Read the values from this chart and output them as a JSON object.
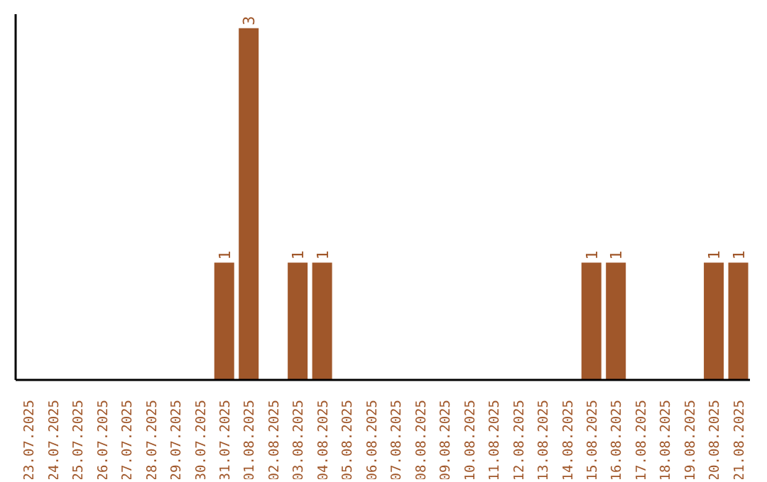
{
  "chart_data": {
    "type": "bar",
    "categories": [
      "23.07.2025",
      "24.07.2025",
      "25.07.2025",
      "26.07.2025",
      "27.07.2025",
      "28.07.2025",
      "29.07.2025",
      "30.07.2025",
      "31.07.2025",
      "01.08.2025",
      "02.08.2025",
      "03.08.2025",
      "04.08.2025",
      "05.08.2025",
      "06.08.2025",
      "07.08.2025",
      "08.08.2025",
      "09.08.2025",
      "10.08.2025",
      "11.08.2025",
      "12.08.2025",
      "13.08.2025",
      "14.08.2025",
      "15.08.2025",
      "16.08.2025",
      "17.08.2025",
      "18.08.2025",
      "19.08.2025",
      "20.08.2025",
      "21.08.2025"
    ],
    "values": [
      0,
      0,
      0,
      0,
      0,
      0,
      0,
      0,
      1,
      3,
      0,
      1,
      1,
      0,
      0,
      0,
      0,
      0,
      0,
      0,
      0,
      0,
      0,
      1,
      1,
      0,
      0,
      0,
      1,
      1
    ],
    "value_labels": [
      null,
      null,
      null,
      null,
      null,
      null,
      null,
      null,
      "1",
      "3",
      null,
      "1",
      "1",
      null,
      null,
      null,
      null,
      null,
      null,
      null,
      null,
      null,
      null,
      "1",
      "1",
      null,
      null,
      null,
      "1",
      "1"
    ],
    "color": "#a0572a",
    "tick_labels": "x",
    "grid": false,
    "legend": false
  }
}
